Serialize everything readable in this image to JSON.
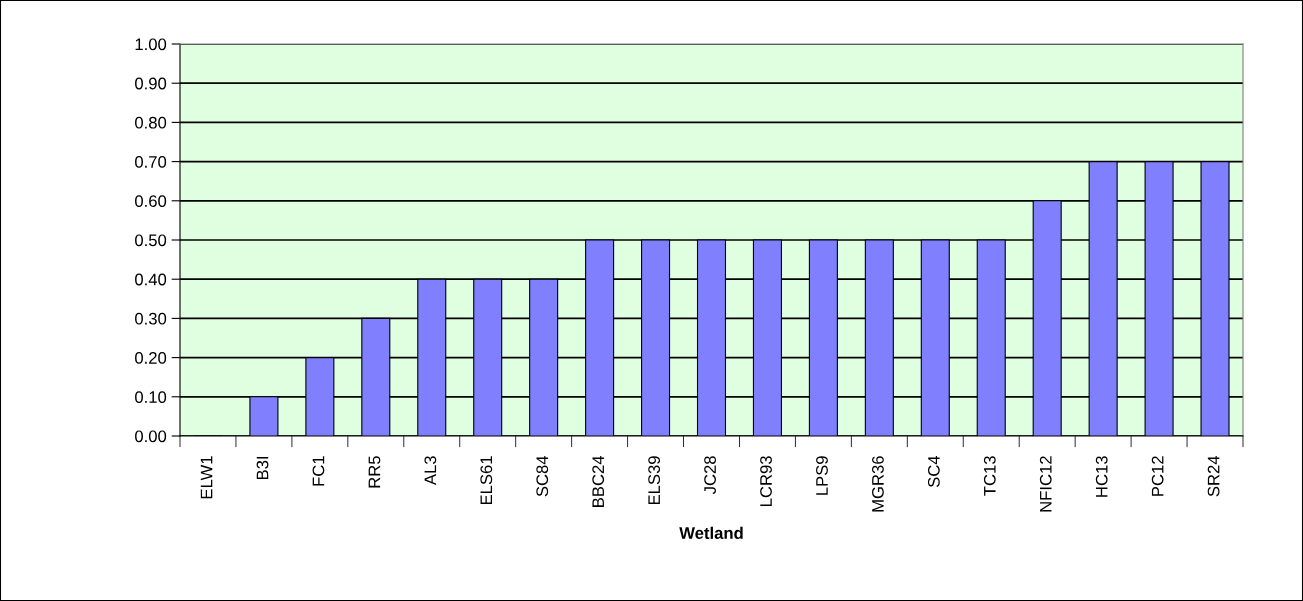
{
  "chart_data": {
    "type": "bar",
    "xlabel": "Wetland",
    "categories": [
      "ELW1",
      "B3I",
      "FC1",
      "RR5",
      "AL3",
      "ELS61",
      "SC84",
      "BBC24",
      "ELS39",
      "JC28",
      "LCR93",
      "LPS9",
      "MGR36",
      "SC4",
      "TC13",
      "NFIC12",
      "HC13",
      "PC12",
      "SR24"
    ],
    "values": [
      0,
      0.1,
      0.2,
      0.3,
      0.4,
      0.4,
      0.4,
      0.5,
      0.5,
      0.5,
      0.5,
      0.5,
      0.5,
      0.5,
      0.5,
      0.6,
      0.7,
      0.7,
      0.7
    ],
    "color": "#8080ff",
    "ylim": [
      0,
      1
    ],
    "yticks": [
      {
        "value": 0,
        "label": "0.00"
      },
      {
        "value": 0.1,
        "label": "0.10"
      },
      {
        "value": 0.2,
        "label": "0.20"
      },
      {
        "value": 0.3,
        "label": "0.30"
      },
      {
        "value": 0.4,
        "label": "0.40"
      },
      {
        "value": 0.5,
        "label": "0.50"
      },
      {
        "value": 0.6,
        "label": "0.60"
      },
      {
        "value": 0.7,
        "label": "0.70"
      },
      {
        "value": 0.8,
        "label": "0.80"
      },
      {
        "value": 0.9,
        "label": "0.90"
      },
      {
        "value": 1,
        "label": "1.00"
      }
    ],
    "grid": "y"
  }
}
